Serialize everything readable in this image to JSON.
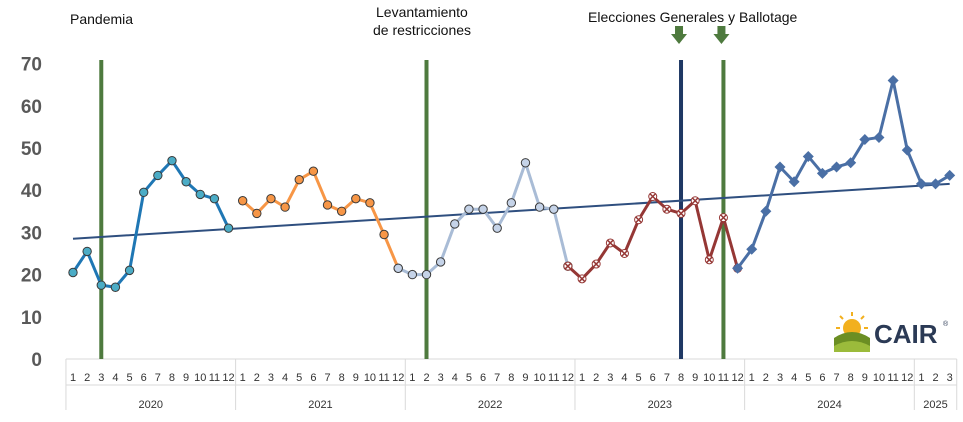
{
  "chart_data": {
    "type": "line",
    "title": "",
    "xlabel": "",
    "ylabel": "",
    "ylim": [
      0,
      70
    ],
    "yticks": [
      0,
      10,
      20,
      30,
      40,
      50,
      60,
      70
    ],
    "years": [
      {
        "label": "2020",
        "months": [
          "1",
          "2",
          "3",
          "4",
          "5",
          "6",
          "7",
          "8",
          "9",
          "10",
          "11",
          "12"
        ]
      },
      {
        "label": "2021",
        "months": [
          "1",
          "2",
          "3",
          "4",
          "5",
          "6",
          "7",
          "8",
          "9",
          "10",
          "11",
          "12"
        ]
      },
      {
        "label": "2022",
        "months": [
          "1",
          "2",
          "3",
          "4",
          "5",
          "6",
          "7",
          "8",
          "9",
          "10",
          "11",
          "12"
        ]
      },
      {
        "label": "2023",
        "months": [
          "1",
          "2",
          "3",
          "4",
          "5",
          "6",
          "7",
          "8",
          "9",
          "10",
          "11",
          "12"
        ]
      },
      {
        "label": "2024",
        "months": [
          "1",
          "2",
          "3",
          "4",
          "5",
          "6",
          "7",
          "8",
          "9",
          "10",
          "11",
          "12"
        ]
      },
      {
        "label": "2025",
        "months": [
          "1",
          "2",
          "3"
        ]
      }
    ],
    "series": [
      {
        "name": "2020",
        "color": "#1f77b4",
        "marker": "circle",
        "fill": "#4bacc6",
        "start": 0,
        "values": [
          20.5,
          25.5,
          17.5,
          17,
          21,
          39.5,
          43.5,
          47,
          42,
          39,
          38,
          31
        ]
      },
      {
        "name": "2021",
        "color": "#f79646",
        "marker": "circle",
        "fill": "#f79646",
        "start": 12,
        "values": [
          37.5,
          34.5,
          38,
          36,
          42.5,
          44.5,
          36.5,
          35,
          38,
          37,
          29.5,
          21.5
        ]
      },
      {
        "name": "2022",
        "color": "#a9bcd6",
        "marker": "circle",
        "fill": "#c5d3e8",
        "start": 23,
        "values": [
          21.5,
          20,
          20,
          23,
          32,
          35.5,
          35.5,
          31,
          37,
          46.5,
          36,
          35.5,
          22
        ]
      },
      {
        "name": "2023",
        "color": "#953735",
        "marker": "x",
        "fill": "#953735",
        "start": 35,
        "values": [
          22,
          19,
          22.5,
          27.5,
          25,
          33,
          38.5,
          35.5,
          34.5,
          37.5,
          23.5,
          33.5,
          21.5
        ]
      },
      {
        "name": "2024",
        "color": "#4a6fa5",
        "marker": "diamond",
        "fill": "#4a6fa5",
        "start": 47,
        "values": [
          21.5,
          26,
          35,
          45.5,
          42,
          48,
          44,
          45.5,
          46.5,
          52,
          52.5,
          66,
          49.5,
          41.5,
          41.5,
          43.5
        ]
      }
    ],
    "trendline": {
      "start": 28.5,
      "end": 41.5,
      "color": "#2f4f7f"
    },
    "vertical_markers": [
      {
        "index": 2,
        "color": "#4e7a3e",
        "label": "Pandemia"
      },
      {
        "index": 25,
        "color": "#4e7a3e",
        "label": "Levantamiento de restricciones"
      },
      {
        "index": 43,
        "color": "#1f3864",
        "label": "Elecciones Generales y Ballotage"
      },
      {
        "index": 46,
        "color": "#4e7a3e",
        "label": ""
      }
    ]
  },
  "annotations": {
    "pandemia": "Pandemia",
    "levantamiento_1": "Levantamiento",
    "levantamiento_2": "de restricciones",
    "elecciones": "Elecciones Generales y Ballotage"
  },
  "logo": {
    "text": "CAIR",
    "registered": "®"
  }
}
